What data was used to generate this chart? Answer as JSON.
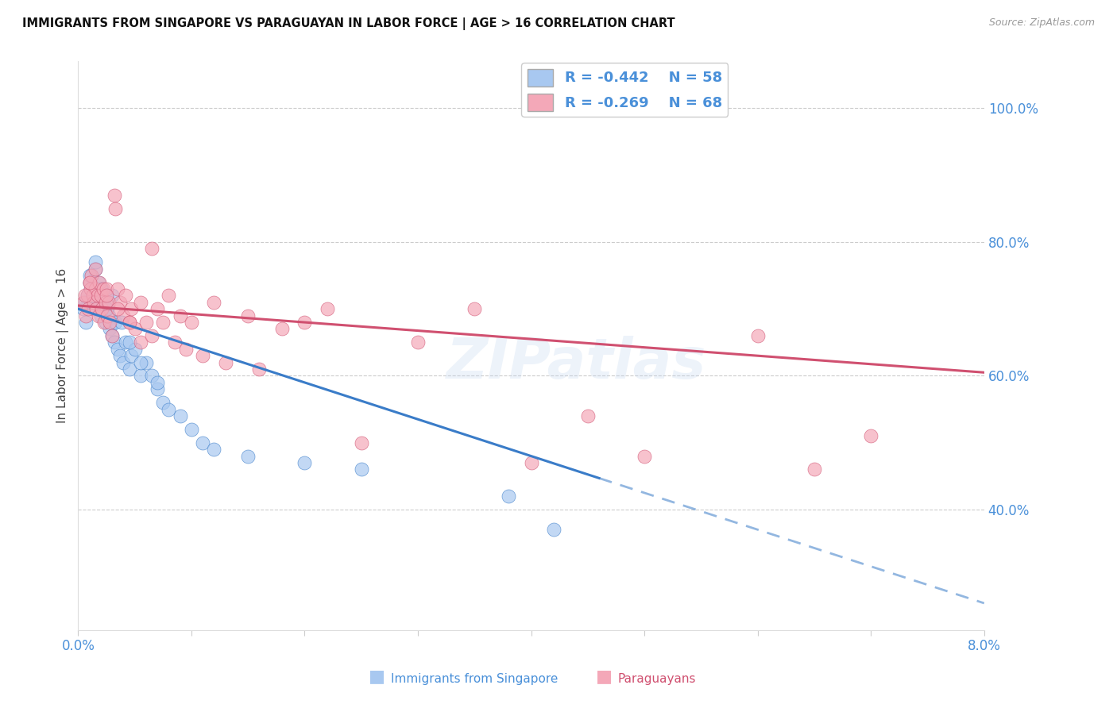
{
  "title": "IMMIGRANTS FROM SINGAPORE VS PARAGUAYAN IN LABOR FORCE | AGE > 16 CORRELATION CHART",
  "source": "Source: ZipAtlas.com",
  "ylabel": "In Labor Force | Age > 16",
  "right_yticks": [
    40.0,
    60.0,
    80.0,
    100.0
  ],
  "xmin": 0.0,
  "xmax": 8.0,
  "ymin": 22.0,
  "ymax": 107.0,
  "legend_r1": "R = -0.442",
  "legend_n1": "N = 58",
  "legend_r2": "R = -0.269",
  "legend_n2": "N = 68",
  "color_blue": "#A8C8F0",
  "color_pink": "#F4A8B8",
  "color_line_blue": "#3A7CC8",
  "color_line_pink": "#D05070",
  "color_axis": "#4A90D9",
  "watermark": "ZIPatlas",
  "sg_x": [
    0.05,
    0.07,
    0.08,
    0.09,
    0.1,
    0.11,
    0.12,
    0.13,
    0.14,
    0.15,
    0.16,
    0.17,
    0.18,
    0.19,
    0.2,
    0.21,
    0.22,
    0.23,
    0.24,
    0.25,
    0.26,
    0.27,
    0.28,
    0.3,
    0.32,
    0.33,
    0.35,
    0.37,
    0.4,
    0.42,
    0.45,
    0.47,
    0.5,
    0.55,
    0.6,
    0.65,
    0.7,
    0.75,
    0.8,
    0.9,
    1.0,
    1.1,
    1.2,
    1.5,
    2.0,
    2.5,
    3.8,
    4.2,
    0.06,
    0.1,
    0.15,
    0.2,
    0.25,
    0.3,
    0.38,
    0.45,
    0.55,
    0.7
  ],
  "sg_y": [
    70,
    68,
    72,
    71,
    74,
    73,
    75,
    72,
    70,
    76,
    73,
    71,
    74,
    72,
    69,
    73,
    71,
    70,
    68,
    72,
    70,
    69,
    67,
    66,
    65,
    68,
    64,
    63,
    62,
    65,
    61,
    63,
    64,
    60,
    62,
    60,
    58,
    56,
    55,
    54,
    52,
    50,
    49,
    48,
    47,
    46,
    42,
    37,
    71,
    75,
    77,
    73,
    70,
    72,
    68,
    65,
    62,
    59
  ],
  "py_x": [
    0.05,
    0.07,
    0.08,
    0.09,
    0.1,
    0.11,
    0.12,
    0.13,
    0.14,
    0.15,
    0.16,
    0.17,
    0.18,
    0.19,
    0.2,
    0.21,
    0.22,
    0.23,
    0.24,
    0.25,
    0.26,
    0.27,
    0.28,
    0.3,
    0.32,
    0.33,
    0.35,
    0.37,
    0.4,
    0.42,
    0.45,
    0.47,
    0.5,
    0.55,
    0.6,
    0.65,
    0.7,
    0.8,
    0.9,
    1.0,
    1.2,
    1.5,
    1.8,
    2.0,
    2.5,
    3.0,
    3.5,
    4.0,
    5.0,
    6.0,
    6.5,
    7.0,
    0.06,
    0.1,
    0.15,
    0.25,
    0.35,
    0.45,
    0.55,
    0.65,
    0.75,
    0.85,
    0.95,
    1.1,
    1.3,
    1.6,
    2.2,
    4.5
  ],
  "py_y": [
    71,
    69,
    72,
    70,
    74,
    73,
    75,
    72,
    71,
    73,
    70,
    72,
    69,
    74,
    72,
    70,
    73,
    68,
    71,
    73,
    69,
    71,
    68,
    66,
    87,
    85,
    73,
    71,
    69,
    72,
    68,
    70,
    67,
    65,
    68,
    79,
    70,
    72,
    69,
    68,
    71,
    69,
    67,
    68,
    50,
    65,
    70,
    47,
    48,
    66,
    46,
    51,
    72,
    74,
    76,
    72,
    70,
    68,
    71,
    66,
    68,
    65,
    64,
    63,
    62,
    61,
    70,
    54
  ]
}
